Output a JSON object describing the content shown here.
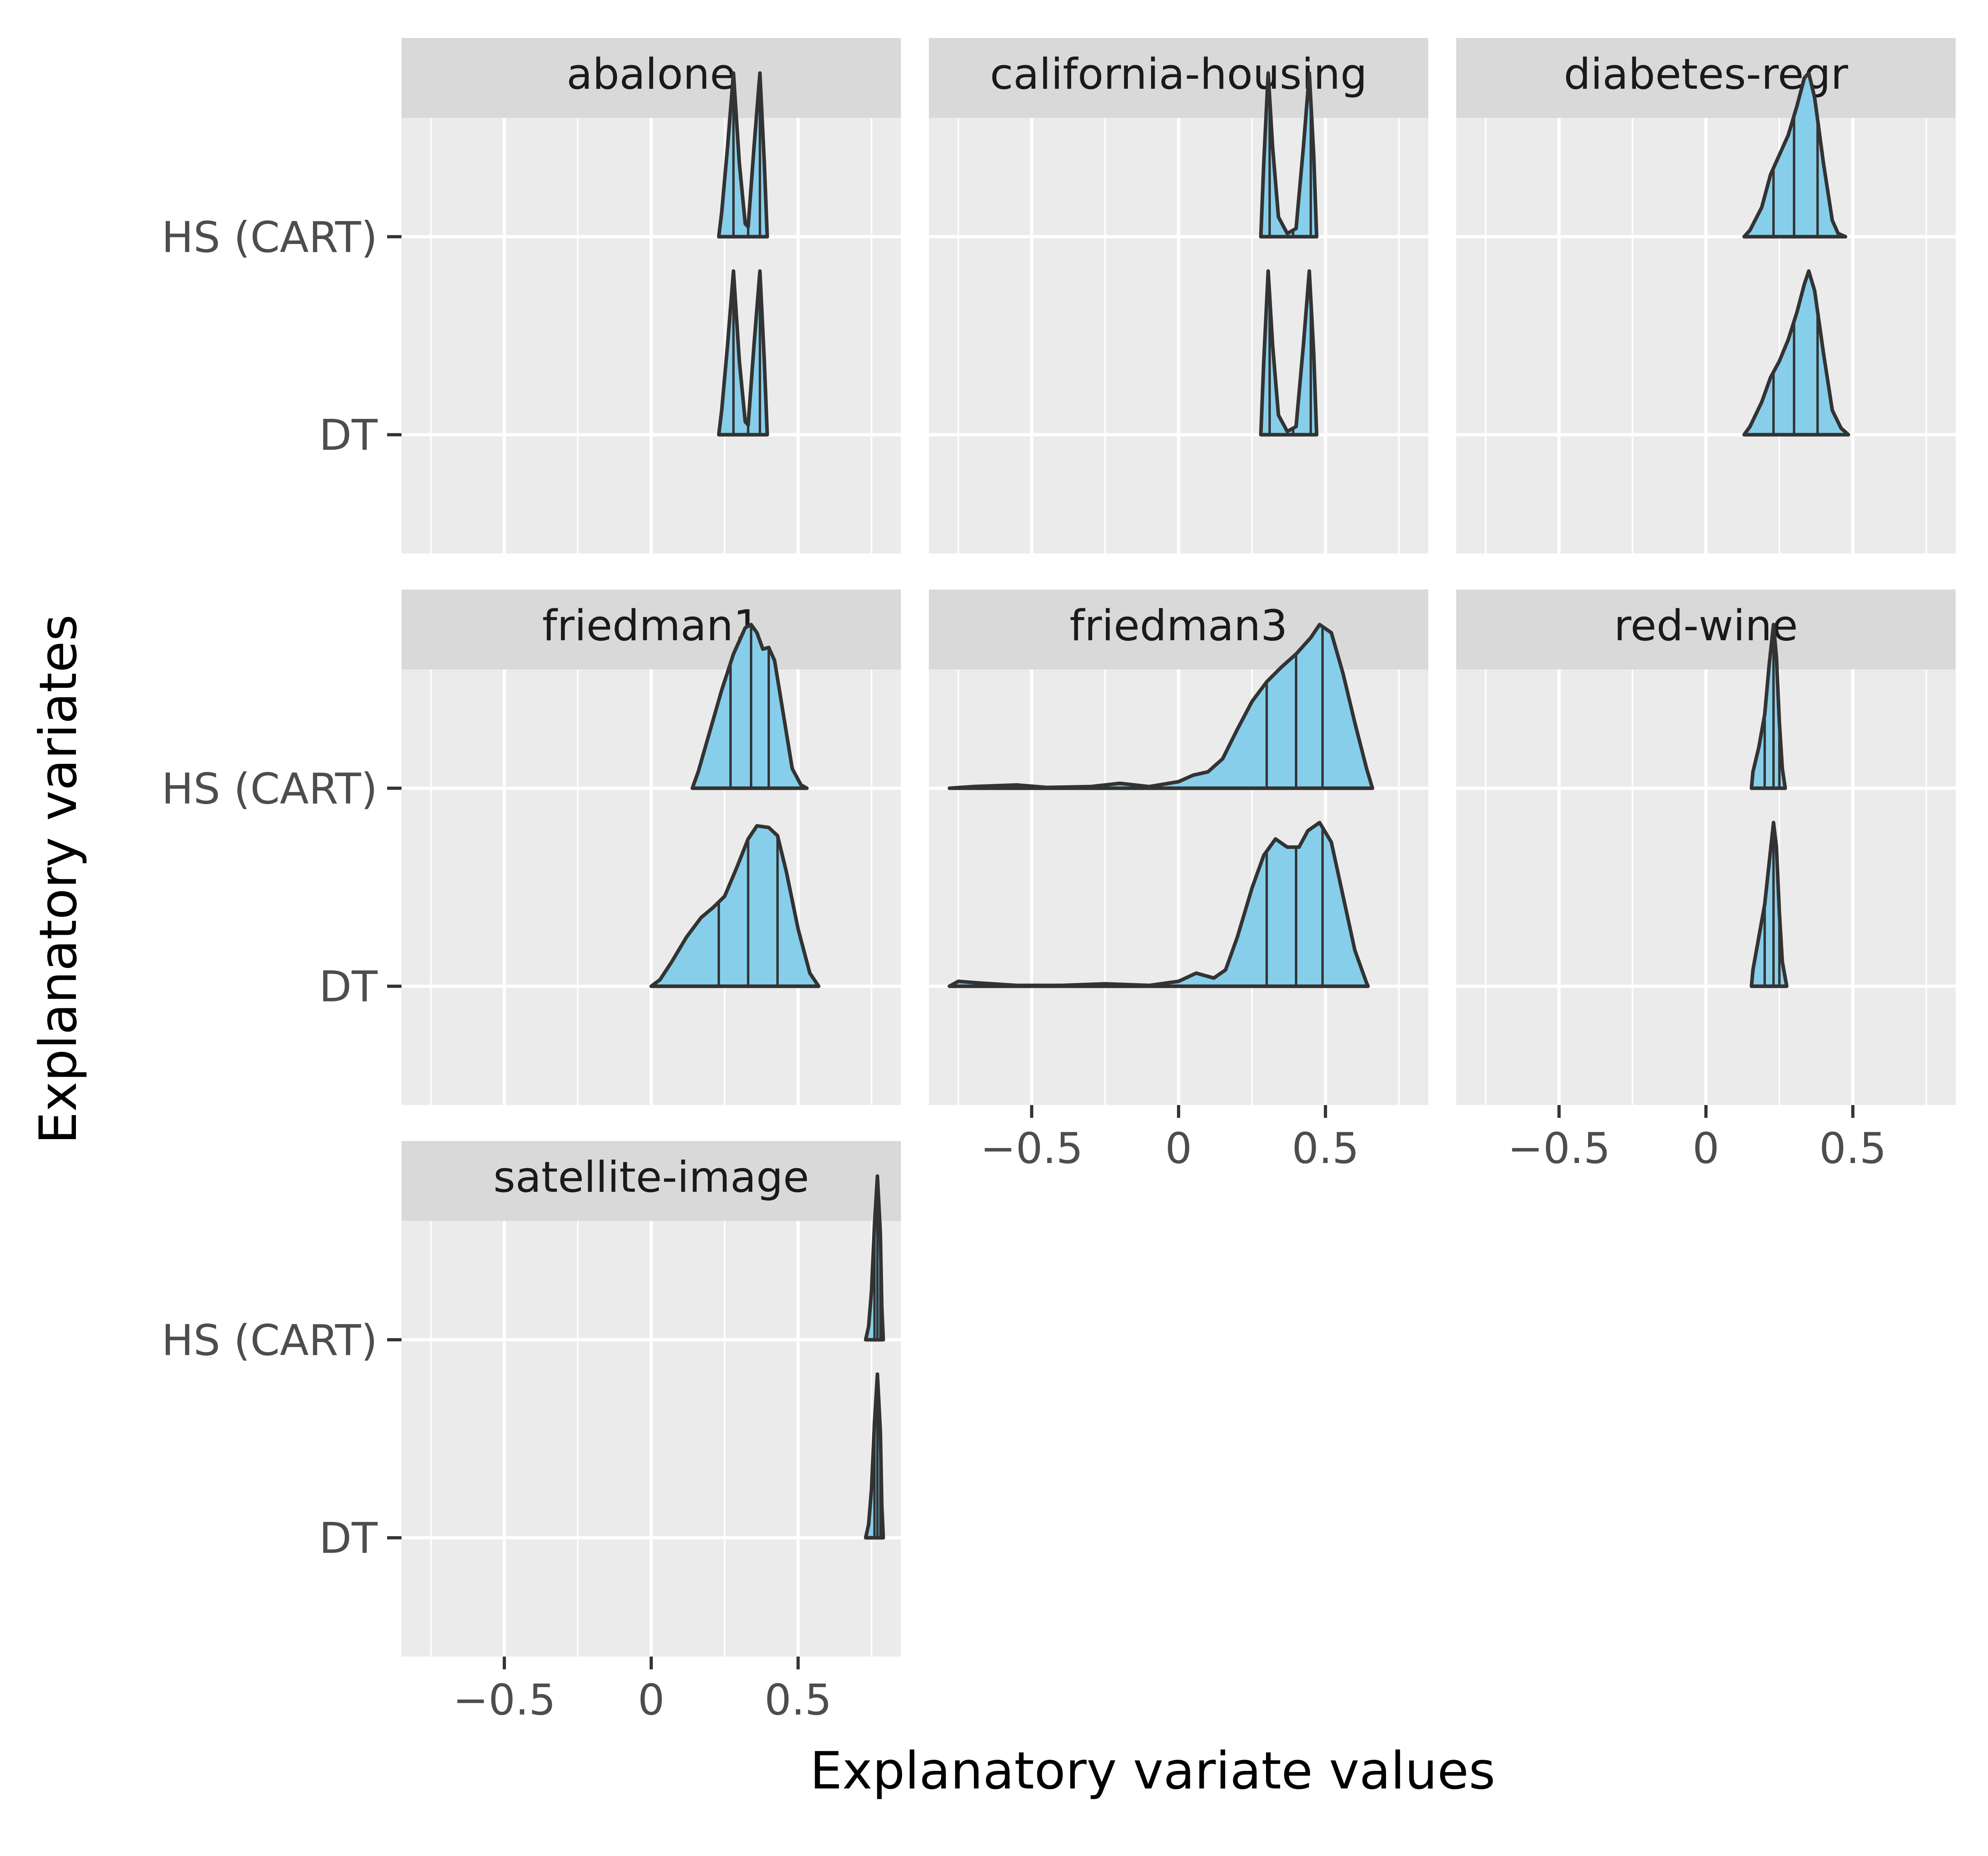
{
  "chart_data": {
    "type": "ridgeline",
    "xlabel": "Explanatory variate values",
    "ylabel": "Explanatory variates",
    "xlim": [
      -0.85,
      0.85
    ],
    "x_ticks": [
      -0.5,
      0,
      0.5
    ],
    "x_tick_labels": [
      "−0.5",
      "0",
      "0.5"
    ],
    "categories": [
      "HS (CART)",
      "DT"
    ],
    "fill_color": "#87ceeb",
    "line_color": "#333333",
    "panel_bg": "#ebebeb",
    "strip_bg": "#d9d9d9",
    "panels": [
      {
        "title": "abalone",
        "series": [
          {
            "name": "HS (CART)",
            "peak": 0.9,
            "quantiles": [
              0.28,
              0.33,
              0.37
            ],
            "points": [
              [
                0.23,
                0.0
              ],
              [
                0.24,
                0.15
              ],
              [
                0.26,
                0.55
              ],
              [
                0.28,
                1.0
              ],
              [
                0.3,
                0.45
              ],
              [
                0.32,
                0.08
              ],
              [
                0.33,
                0.06
              ],
              [
                0.35,
                0.55
              ],
              [
                0.37,
                1.0
              ],
              [
                0.385,
                0.45
              ],
              [
                0.395,
                0.0
              ]
            ]
          },
          {
            "name": "DT",
            "peak": 0.9,
            "quantiles": [
              0.28,
              0.33,
              0.37
            ],
            "points": [
              [
                0.23,
                0.0
              ],
              [
                0.24,
                0.15
              ],
              [
                0.26,
                0.55
              ],
              [
                0.28,
                1.0
              ],
              [
                0.3,
                0.45
              ],
              [
                0.32,
                0.08
              ],
              [
                0.33,
                0.06
              ],
              [
                0.35,
                0.55
              ],
              [
                0.37,
                1.0
              ],
              [
                0.385,
                0.45
              ],
              [
                0.395,
                0.0
              ]
            ]
          }
        ]
      },
      {
        "title": "california-housing",
        "series": [
          {
            "name": "HS (CART)",
            "peak": 0.9,
            "quantiles": [
              0.31,
              0.39,
              0.45
            ],
            "points": [
              [
                0.28,
                0.0
              ],
              [
                0.29,
                0.45
              ],
              [
                0.305,
                1.0
              ],
              [
                0.32,
                0.55
              ],
              [
                0.34,
                0.12
              ],
              [
                0.37,
                0.02
              ],
              [
                0.4,
                0.05
              ],
              [
                0.425,
                0.55
              ],
              [
                0.445,
                1.0
              ],
              [
                0.46,
                0.5
              ],
              [
                0.47,
                0.0
              ]
            ]
          },
          {
            "name": "DT",
            "peak": 0.9,
            "quantiles": [
              0.31,
              0.39,
              0.45
            ],
            "points": [
              [
                0.28,
                0.0
              ],
              [
                0.29,
                0.45
              ],
              [
                0.305,
                1.0
              ],
              [
                0.32,
                0.55
              ],
              [
                0.34,
                0.12
              ],
              [
                0.37,
                0.02
              ],
              [
                0.4,
                0.05
              ],
              [
                0.425,
                0.55
              ],
              [
                0.445,
                1.0
              ],
              [
                0.46,
                0.5
              ],
              [
                0.47,
                0.0
              ]
            ]
          }
        ]
      },
      {
        "title": "diabetes-regr",
        "series": [
          {
            "name": "HS (CART)",
            "peak": 0.9,
            "quantiles": [
              0.23,
              0.3,
              0.38
            ],
            "points": [
              [
                0.13,
                0.0
              ],
              [
                0.15,
                0.04
              ],
              [
                0.19,
                0.18
              ],
              [
                0.22,
                0.38
              ],
              [
                0.25,
                0.5
              ],
              [
                0.28,
                0.62
              ],
              [
                0.31,
                0.8
              ],
              [
                0.335,
                0.97
              ],
              [
                0.35,
                1.0
              ],
              [
                0.37,
                0.85
              ],
              [
                0.4,
                0.45
              ],
              [
                0.43,
                0.1
              ],
              [
                0.45,
                0.02
              ],
              [
                0.475,
                0.0
              ]
            ]
          },
          {
            "name": "DT",
            "peak": 0.9,
            "quantiles": [
              0.23,
              0.3,
              0.38
            ],
            "points": [
              [
                0.13,
                0.0
              ],
              [
                0.15,
                0.05
              ],
              [
                0.19,
                0.2
              ],
              [
                0.22,
                0.35
              ],
              [
                0.25,
                0.45
              ],
              [
                0.28,
                0.58
              ],
              [
                0.31,
                0.75
              ],
              [
                0.335,
                0.92
              ],
              [
                0.35,
                1.0
              ],
              [
                0.37,
                0.88
              ],
              [
                0.4,
                0.5
              ],
              [
                0.43,
                0.15
              ],
              [
                0.46,
                0.04
              ],
              [
                0.485,
                0.0
              ]
            ]
          }
        ]
      },
      {
        "title": "friedman1",
        "series": [
          {
            "name": "HS (CART)",
            "peak": 0.9,
            "quantiles": [
              0.27,
              0.34,
              0.4
            ],
            "points": [
              [
                0.14,
                0.0
              ],
              [
                0.16,
                0.1
              ],
              [
                0.2,
                0.35
              ],
              [
                0.24,
                0.6
              ],
              [
                0.28,
                0.82
              ],
              [
                0.32,
                0.98
              ],
              [
                0.34,
                1.0
              ],
              [
                0.36,
                0.95
              ],
              [
                0.38,
                0.85
              ],
              [
                0.4,
                0.86
              ],
              [
                0.42,
                0.78
              ],
              [
                0.45,
                0.45
              ],
              [
                0.48,
                0.12
              ],
              [
                0.51,
                0.02
              ],
              [
                0.53,
                0.0
              ]
            ]
          },
          {
            "name": "DT",
            "peak": 0.9,
            "quantiles": [
              0.23,
              0.33,
              0.43
            ],
            "points": [
              [
                0.0,
                0.0
              ],
              [
                0.03,
                0.04
              ],
              [
                0.07,
                0.15
              ],
              [
                0.12,
                0.3
              ],
              [
                0.17,
                0.42
              ],
              [
                0.21,
                0.48
              ],
              [
                0.25,
                0.55
              ],
              [
                0.29,
                0.72
              ],
              [
                0.33,
                0.9
              ],
              [
                0.36,
                0.98
              ],
              [
                0.4,
                0.97
              ],
              [
                0.43,
                0.92
              ],
              [
                0.46,
                0.7
              ],
              [
                0.5,
                0.35
              ],
              [
                0.54,
                0.08
              ],
              [
                0.57,
                0.0
              ]
            ]
          }
        ]
      },
      {
        "title": "friedman3",
        "series": [
          {
            "name": "HS (CART)",
            "peak": 0.9,
            "quantiles": [
              0.3,
              0.4,
              0.49
            ],
            "points": [
              [
                -0.78,
                0.0
              ],
              [
                -0.7,
                0.01
              ],
              [
                -0.55,
                0.02
              ],
              [
                -0.45,
                0.005
              ],
              [
                -0.3,
                0.01
              ],
              [
                -0.2,
                0.03
              ],
              [
                -0.1,
                0.01
              ],
              [
                0.0,
                0.04
              ],
              [
                0.05,
                0.08
              ],
              [
                0.1,
                0.1
              ],
              [
                0.15,
                0.18
              ],
              [
                0.2,
                0.36
              ],
              [
                0.25,
                0.53
              ],
              [
                0.3,
                0.65
              ],
              [
                0.35,
                0.74
              ],
              [
                0.4,
                0.82
              ],
              [
                0.45,
                0.92
              ],
              [
                0.48,
                1.0
              ],
              [
                0.52,
                0.95
              ],
              [
                0.56,
                0.7
              ],
              [
                0.6,
                0.4
              ],
              [
                0.64,
                0.12
              ],
              [
                0.66,
                0.0
              ]
            ]
          },
          {
            "name": "DT",
            "peak": 0.9,
            "quantiles": [
              0.3,
              0.4,
              0.49
            ],
            "points": [
              [
                -0.78,
                0.0
              ],
              [
                -0.75,
                0.03
              ],
              [
                -0.68,
                0.02
              ],
              [
                -0.55,
                0.005
              ],
              [
                -0.4,
                0.005
              ],
              [
                -0.25,
                0.015
              ],
              [
                -0.1,
                0.005
              ],
              [
                0.0,
                0.03
              ],
              [
                0.06,
                0.08
              ],
              [
                0.12,
                0.05
              ],
              [
                0.16,
                0.1
              ],
              [
                0.2,
                0.3
              ],
              [
                0.25,
                0.6
              ],
              [
                0.29,
                0.8
              ],
              [
                0.33,
                0.9
              ],
              [
                0.37,
                0.85
              ],
              [
                0.41,
                0.85
              ],
              [
                0.44,
                0.95
              ],
              [
                0.48,
                1.0
              ],
              [
                0.52,
                0.88
              ],
              [
                0.56,
                0.55
              ],
              [
                0.6,
                0.22
              ],
              [
                0.64,
                0.02
              ],
              [
                0.645,
                0.0
              ]
            ]
          }
        ]
      },
      {
        "title": "red-wine",
        "series": [
          {
            "name": "HS (CART)",
            "peak": 0.9,
            "quantiles": [
              0.2,
              0.23,
              0.25
            ],
            "points": [
              [
                0.155,
                0.0
              ],
              [
                0.16,
                0.1
              ],
              [
                0.18,
                0.25
              ],
              [
                0.2,
                0.45
              ],
              [
                0.215,
                0.75
              ],
              [
                0.23,
                1.0
              ],
              [
                0.24,
                0.8
              ],
              [
                0.25,
                0.4
              ],
              [
                0.26,
                0.12
              ],
              [
                0.27,
                0.0
              ]
            ]
          },
          {
            "name": "DT",
            "peak": 0.9,
            "quantiles": [
              0.2,
              0.23,
              0.25
            ],
            "points": [
              [
                0.155,
                0.0
              ],
              [
                0.16,
                0.1
              ],
              [
                0.18,
                0.3
              ],
              [
                0.2,
                0.5
              ],
              [
                0.215,
                0.75
              ],
              [
                0.23,
                1.0
              ],
              [
                0.24,
                0.85
              ],
              [
                0.25,
                0.45
              ],
              [
                0.26,
                0.15
              ],
              [
                0.275,
                0.0
              ]
            ]
          }
        ]
      },
      {
        "title": "satellite-image",
        "series": [
          {
            "name": "HS (CART)",
            "peak": 0.9,
            "quantiles": [
              0.76,
              0.77,
              0.78
            ],
            "points": [
              [
                0.73,
                0.0
              ],
              [
                0.74,
                0.08
              ],
              [
                0.75,
                0.3
              ],
              [
                0.76,
                0.7
              ],
              [
                0.77,
                1.0
              ],
              [
                0.78,
                0.65
              ],
              [
                0.785,
                0.2
              ],
              [
                0.79,
                0.0
              ]
            ]
          },
          {
            "name": "DT",
            "peak": 0.9,
            "quantiles": [
              0.76,
              0.77,
              0.78
            ],
            "points": [
              [
                0.73,
                0.0
              ],
              [
                0.74,
                0.08
              ],
              [
                0.75,
                0.3
              ],
              [
                0.76,
                0.7
              ],
              [
                0.77,
                1.0
              ],
              [
                0.78,
                0.65
              ],
              [
                0.785,
                0.2
              ],
              [
                0.79,
                0.0
              ]
            ]
          }
        ]
      }
    ]
  }
}
